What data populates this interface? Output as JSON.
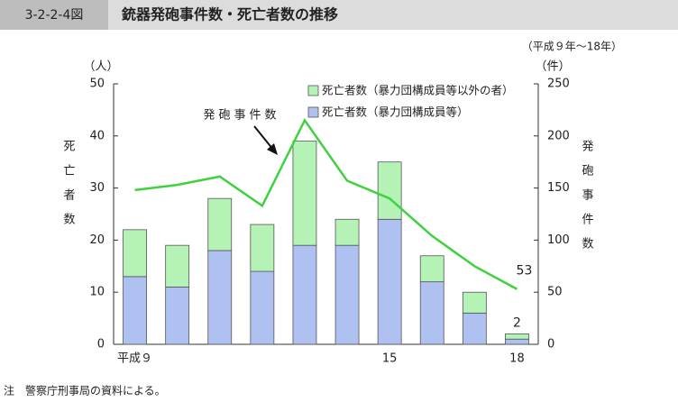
{
  "chart_data": {
    "type": "bar",
    "figure_number": "3-2-2-4図",
    "title": "銃器発砲事件数・死亡者数の推移",
    "subtitle": "（平成９年～18年）",
    "y_unit": "（人）",
    "y2_unit": "（件）",
    "ylabel": "死亡者数",
    "y2label": "発砲事件数",
    "categories": [
      "平成９",
      null,
      null,
      null,
      null,
      null,
      "15",
      null,
      null,
      "18"
    ],
    "stacked": true,
    "series": [
      {
        "name": "死亡者数（暴力団構成員等）",
        "type": "bar",
        "color": "#afc1f0",
        "values": [
          13,
          11,
          18,
          14,
          19,
          19,
          24,
          12,
          6,
          1
        ]
      },
      {
        "name": "死亡者数（暴力団構成員等以外の者）",
        "type": "bar",
        "color": "#b5f2b5",
        "values": [
          9,
          8,
          10,
          9,
          20,
          5,
          11,
          5,
          4,
          1
        ]
      },
      {
        "name": "発砲事件数",
        "type": "line",
        "axis": "y2",
        "color": "#3fd13f",
        "values": [
          148,
          153,
          161,
          133,
          215,
          157,
          140,
          104,
          75,
          53
        ]
      }
    ],
    "annotations": [
      {
        "text": "2"
      }
    ],
    "ylim": [
      0,
      50
    ],
    "yticks": [
      0,
      10,
      20,
      30,
      40,
      50
    ],
    "y2lim": [
      0,
      250
    ],
    "y2ticks": [
      0,
      50,
      100,
      150,
      200,
      250
    ],
    "note": "注　警察庁刑事局の資料による。"
  }
}
